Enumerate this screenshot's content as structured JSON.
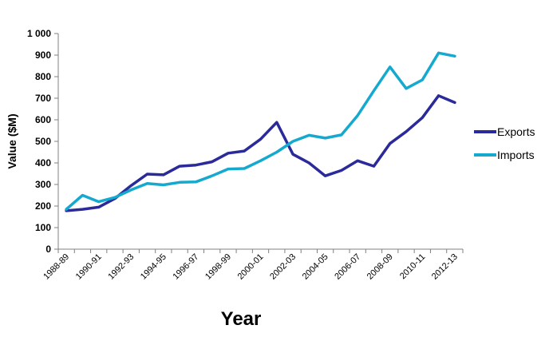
{
  "chart_data": {
    "type": "line",
    "xlabel": "Year",
    "ylabel": "Value ($M)",
    "ylim": [
      0,
      1000
    ],
    "yticks": [
      0,
      100,
      200,
      300,
      400,
      500,
      600,
      700,
      800,
      900,
      1000
    ],
    "ytick_labels": [
      "0",
      "100",
      "200",
      "300",
      "400",
      "500",
      "600",
      "700",
      "800",
      "900",
      "1 000"
    ],
    "x": [
      "1988-89",
      "1989-90",
      "1990-91",
      "1991-92",
      "1992-93",
      "1993-94",
      "1994-95",
      "1995-96",
      "1996-97",
      "1997-98",
      "1998-99",
      "1999-00",
      "2000-01",
      "2001-02",
      "2002-03",
      "2003-04",
      "2004-05",
      "2005-06",
      "2006-07",
      "2007-08",
      "2008-09",
      "2009-10",
      "2010-11",
      "2011-12",
      "2012-13"
    ],
    "xtick_labels": [
      "1988-89",
      "1990-91",
      "1992-93",
      "1994-95",
      "1996-97",
      "1998-99",
      "2000-01",
      "2002-03",
      "2004-05",
      "2006-07",
      "2008-09",
      "2010-11",
      "2012-13"
    ],
    "grid": false,
    "legend_position": "right",
    "series": [
      {
        "name": "Exports",
        "color": "#2B2A9A",
        "values": [
          178,
          185,
          195,
          235,
          295,
          348,
          345,
          385,
          390,
          405,
          445,
          455,
          510,
          588,
          440,
          400,
          340,
          365,
          410,
          385,
          490,
          545,
          610,
          712,
          680
        ]
      },
      {
        "name": "Imports",
        "color": "#16A9D0",
        "values": [
          185,
          250,
          220,
          240,
          275,
          305,
          298,
          310,
          312,
          340,
          372,
          374,
          410,
          450,
          500,
          528,
          515,
          530,
          620,
          735,
          845,
          745,
          785,
          910,
          895
        ]
      }
    ]
  }
}
